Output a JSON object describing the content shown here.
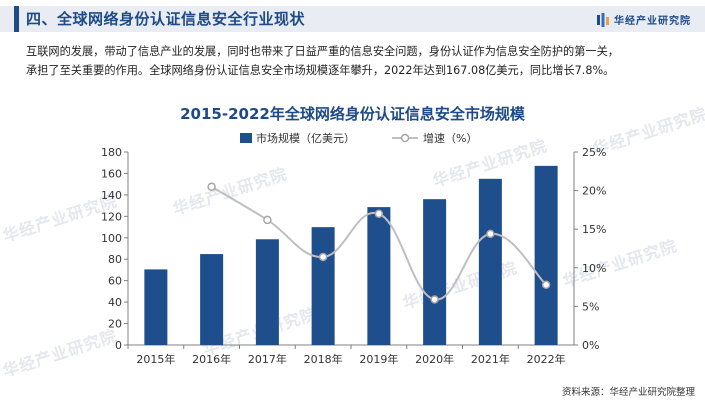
{
  "header": {
    "title": "四、全球网络身份认证信息安全行业现状",
    "brand_name": "华经产业研究院",
    "logo_icon": "brand-logo-icon"
  },
  "intro": {
    "line1": "互联网的发展，带动了信息产业的发展，同时也带来了日益严重的信息安全问题，身份认证作为信息安全防护的第一关，",
    "line2": "承担了至关重要的作用。全球网络身份认证信息安全市场规模逐年攀升，2022年达到167.08亿美元，同比增长7.8%。"
  },
  "watermark_text": "华经产业研究院",
  "source": "资料来源：华经产业研究院整理",
  "colors": {
    "bar": "#1f4e8c",
    "line": "#bfbfbf",
    "marker_fill": "#ffffff",
    "marker_stroke": "#a6a6a6",
    "title": "#1e4a87"
  },
  "chart_data": {
    "type": "bar",
    "title": "2015-2022年全球网络身份认证信息安全市场规模",
    "categories": [
      "2015年",
      "2016年",
      "2017年",
      "2018年",
      "2019年",
      "2020年",
      "2021年",
      "2022年"
    ],
    "series": [
      {
        "name": "市场规模（亿美元）",
        "type": "bar",
        "axis": "left",
        "values": [
          70.5,
          84.8,
          98.6,
          109.9,
          128.6,
          136.0,
          155.0,
          167.08
        ]
      },
      {
        "name": "增速（%）",
        "type": "line",
        "axis": "right",
        "smooth": true,
        "values": [
          null,
          20.5,
          16.2,
          11.4,
          17.0,
          5.9,
          14.4,
          7.8
        ]
      }
    ],
    "y_left": {
      "min": 0,
      "max": 180,
      "step": 20,
      "ticks": [
        "0",
        "20",
        "40",
        "60",
        "80",
        "100",
        "120",
        "140",
        "160",
        "180"
      ]
    },
    "y_right": {
      "min": 0,
      "max": 25,
      "step": 5,
      "ticks": [
        "0%",
        "5%",
        "10%",
        "15%",
        "20%",
        "25%"
      ]
    },
    "legend_position": "top-center",
    "grid": false
  }
}
